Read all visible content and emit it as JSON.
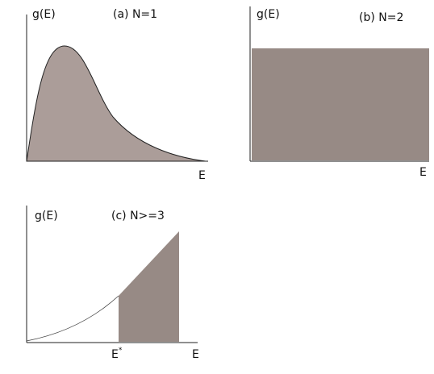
{
  "panels": [
    {
      "y_label": "g(E)",
      "title": "(a)  N=1",
      "x_label": "E"
    },
    {
      "y_label": "g(E)",
      "title": "(b)  N=2",
      "x_label": "E"
    },
    {
      "y_label": "g(E)",
      "title": "(c)  N>=3",
      "x_label": "E",
      "x_marker": "E",
      "x_marker_sup": "*"
    }
  ]
}
